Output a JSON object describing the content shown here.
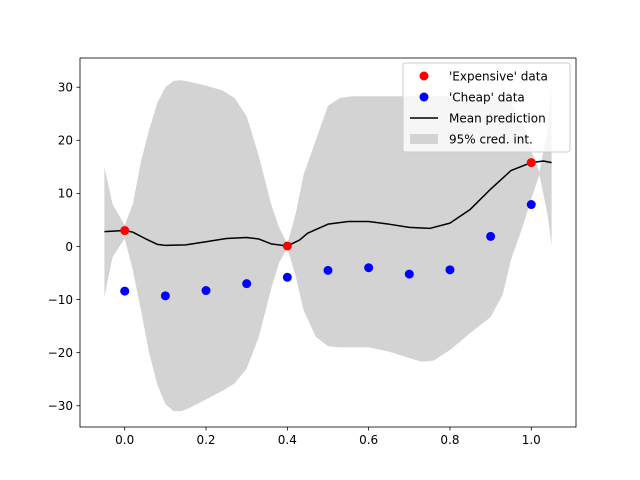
{
  "chart_data": {
    "type": "line",
    "title": "",
    "xlabel": "",
    "ylabel": "",
    "xlim": [
      -0.11,
      1.11
    ],
    "ylim": [
      -34,
      35.5
    ],
    "grid": false,
    "legend_position": "top-right",
    "x_ticks": [
      0.0,
      0.2,
      0.4,
      0.6,
      0.8,
      1.0
    ],
    "x_tick_labels": [
      "0.0",
      "0.2",
      "0.4",
      "0.6",
      "0.8",
      "1.0"
    ],
    "y_ticks": [
      -30,
      -20,
      -10,
      0,
      10,
      20,
      30
    ],
    "y_tick_labels": [
      "−30",
      "−20",
      "−10",
      "0",
      "10",
      "20",
      "30"
    ],
    "series": [
      {
        "name": "'Expensive' data",
        "kind": "scatter",
        "color": "#ff0000",
        "x": [
          0.0,
          0.4,
          1.0
        ],
        "y": [
          3.0,
          0.1,
          15.8
        ]
      },
      {
        "name": "'Cheap' data",
        "kind": "scatter",
        "color": "#0000ff",
        "x": [
          0.0,
          0.1,
          0.2,
          0.3,
          0.4,
          0.5,
          0.6,
          0.7,
          0.8,
          0.9,
          1.0
        ],
        "y": [
          -8.4,
          -9.3,
          -8.3,
          -7.0,
          -5.8,
          -4.5,
          -4.0,
          -5.2,
          -4.4,
          1.9,
          7.9
        ]
      },
      {
        "name": "Mean prediction",
        "kind": "line",
        "color": "#000000",
        "x": [
          -0.05,
          0.0,
          0.02,
          0.05,
          0.08,
          0.1,
          0.15,
          0.2,
          0.25,
          0.3,
          0.33,
          0.36,
          0.4,
          0.43,
          0.45,
          0.5,
          0.55,
          0.6,
          0.65,
          0.7,
          0.75,
          0.8,
          0.85,
          0.9,
          0.95,
          1.0,
          1.03,
          1.05
        ],
        "y": [
          2.8,
          3.0,
          2.7,
          1.5,
          0.4,
          0.2,
          0.3,
          0.9,
          1.5,
          1.7,
          1.4,
          0.5,
          0.1,
          1.2,
          2.5,
          4.2,
          4.7,
          4.7,
          4.2,
          3.6,
          3.4,
          4.4,
          7.0,
          10.8,
          14.3,
          15.8,
          16.1,
          15.8
        ]
      }
    ],
    "interval": {
      "name": "95% cred. int.",
      "color": "#d3d3d3",
      "x": [
        -0.05,
        -0.03,
        0.0,
        0.02,
        0.04,
        0.06,
        0.08,
        0.1,
        0.12,
        0.14,
        0.16,
        0.2,
        0.24,
        0.27,
        0.3,
        0.33,
        0.36,
        0.38,
        0.4,
        0.42,
        0.44,
        0.47,
        0.5,
        0.53,
        0.56,
        0.6,
        0.65,
        0.7,
        0.73,
        0.76,
        0.8,
        0.85,
        0.9,
        0.93,
        0.95,
        0.98,
        1.0,
        1.02,
        1.04,
        1.05
      ],
      "upper": [
        15.0,
        8.0,
        4.0,
        8.0,
        16.0,
        22.0,
        27.0,
        30.0,
        31.2,
        31.3,
        31.0,
        30.3,
        29.4,
        28.0,
        24.5,
        17.0,
        8.0,
        3.5,
        0.5,
        6.0,
        13.5,
        20.0,
        26.5,
        28.0,
        28.3,
        28.3,
        28.3,
        28.3,
        28.3,
        28.3,
        28.3,
        28.3,
        28.3,
        28.0,
        27.0,
        23.0,
        18.0,
        14.0,
        22.0,
        31.0
      ],
      "lower": [
        -9.5,
        -2.0,
        1.5,
        -4.5,
        -12.0,
        -20.0,
        -26.0,
        -29.7,
        -31.0,
        -31.0,
        -30.4,
        -28.8,
        -27.2,
        -25.8,
        -23.0,
        -17.0,
        -8.0,
        -3.0,
        -0.3,
        -5.5,
        -12.0,
        -17.0,
        -18.8,
        -19.0,
        -19.0,
        -19.0,
        -19.8,
        -21.0,
        -21.7,
        -21.5,
        -19.5,
        -16.3,
        -13.3,
        -9.0,
        -2.5,
        4.0,
        9.0,
        13.5,
        6.0,
        0.2
      ]
    }
  }
}
